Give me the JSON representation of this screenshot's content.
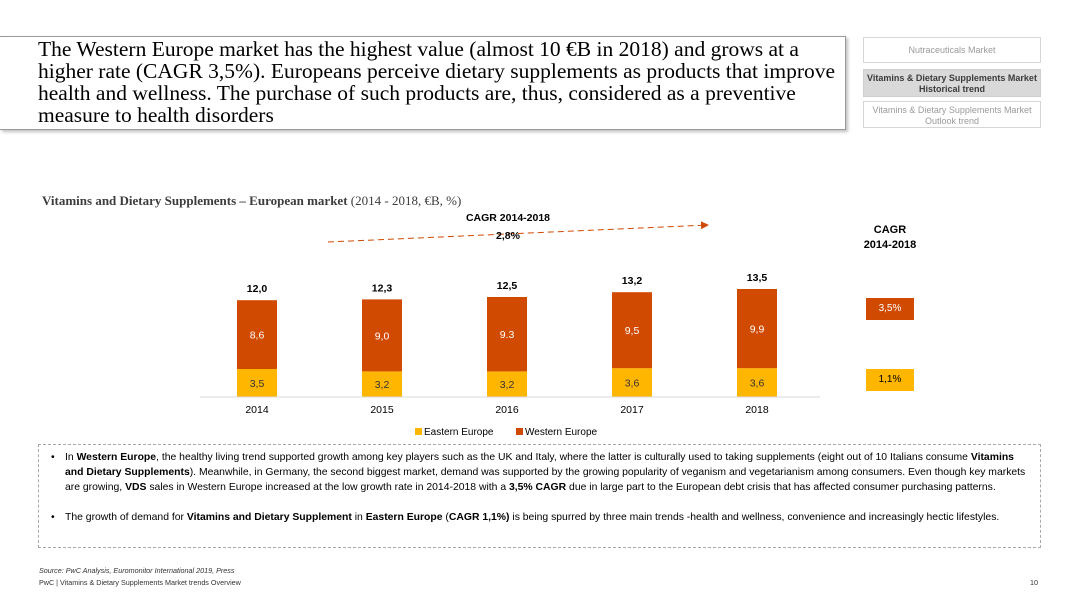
{
  "headline": "The Western Europe market has the highest value (almost 10 €B in 2018) and grows at a higher rate (CAGR 3,5%). Europeans perceive dietary supplements as products that improve health and wellness. The purchase of such products are, thus, considered as a preventive measure to health disorders",
  "nav": {
    "item1": "Nutraceuticals Market",
    "item2_line1": "Vitamins & Dietary Supplements Market",
    "item2_line2": "Historical trend",
    "item3_line1": "Vitamins & Dietary Supplements Market",
    "item3_line2": "Outlook trend"
  },
  "colors": {
    "eastern": "#FFB600",
    "western": "#D04A02",
    "arrow": "#D04A02"
  },
  "chart_title_bold": "Vitamins and Dietary Supplements – European market",
  "chart_title_rest": " (2014 - 2018, €B, %)",
  "chart_data": {
    "type": "bar",
    "stacked": true,
    "title": "Vitamins and Dietary Supplements – European market (2014 - 2018, €B, %)",
    "categories": [
      "2014",
      "2015",
      "2016",
      "2017",
      "2018"
    ],
    "series": [
      {
        "name": "Eastern Europe",
        "values": [
          3.5,
          3.2,
          3.2,
          3.6,
          3.6
        ],
        "labels": [
          "3,5",
          "3,2",
          "3,2",
          "3,6",
          "3,6"
        ]
      },
      {
        "name": "Western Europe",
        "values": [
          8.6,
          9.0,
          9.3,
          9.5,
          9.9
        ],
        "labels": [
          "8,6",
          "9,0",
          "9.3",
          "9,5",
          "9,9"
        ]
      }
    ],
    "totals": [
      12.0,
      12.3,
      12.5,
      13.2,
      13.5
    ],
    "total_labels": [
      "12,0",
      "12,3",
      "12,5",
      "13,2",
      "13,5"
    ],
    "cagr_arrow": {
      "label_line1": "CAGR 2014-2018",
      "label_line2": "2,8%"
    },
    "legend": "bottom-center"
  },
  "cagr_side": {
    "heading_line1": "CAGR",
    "heading_line2": "2014-2018",
    "western": "3,5%",
    "eastern": "1,1%"
  },
  "bullets": {
    "b1": [
      {
        "t": "In ",
        "b": false
      },
      {
        "t": "Western Europe",
        "b": true
      },
      {
        "t": ", the healthy living trend supported growth among key players such as the UK and Italy, where the latter is culturally used to taking supplements (eight out of 10 Italians consume ",
        "b": false
      },
      {
        "t": "Vitamins and Dietary Supplements",
        "b": true
      },
      {
        "t": "). Meanwhile, in Germany, the second biggest market, demand was supported by the growing popularity of veganism and vegetarianism among consumers. Even though key markets are growing, ",
        "b": false
      },
      {
        "t": "VDS",
        "b": true
      },
      {
        "t": " sales in Western Europe increased at the low growth rate in 2014-2018 with a ",
        "b": false
      },
      {
        "t": "3,5% CAGR",
        "b": true
      },
      {
        "t": " due in large part to the European debt crisis that has affected consumer purchasing patterns.",
        "b": false
      }
    ],
    "b2": [
      {
        "t": "The growth of demand for ",
        "b": false
      },
      {
        "t": "Vitamins and Dietary Supplement",
        "b": true
      },
      {
        "t": " in ",
        "b": false
      },
      {
        "t": "Eastern Europe",
        "b": true
      },
      {
        "t": " (",
        "b": false
      },
      {
        "t": "CAGR 1,1%)",
        "b": true
      },
      {
        "t": " is being spurred by three main trends -health and wellness, convenience and increasingly hectic lifestyles.",
        "b": false
      }
    ]
  },
  "source": "Source: PwC Analysis, Euromonitor International 2019, Press",
  "footer": "PwC | Vitamins & Dietary Supplements Market trends Overview",
  "page_number": "10"
}
